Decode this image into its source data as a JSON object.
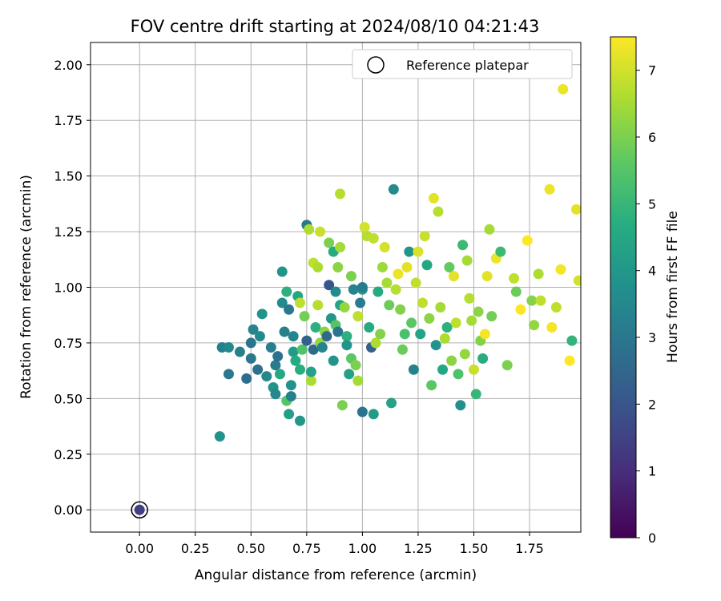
{
  "chart_data": {
    "type": "scatter",
    "title": "FOV centre drift starting at 2024/08/10 04:21:43",
    "xlabel": "Angular distance from reference (arcmin)",
    "ylabel": "Rotation from reference (arcmin)",
    "xlim": [
      -0.22,
      1.98
    ],
    "ylim": [
      -0.1,
      2.1
    ],
    "xticks": [
      "0.00",
      "0.25",
      "0.50",
      "0.75",
      "1.00",
      "1.25",
      "1.50",
      "1.75"
    ],
    "yticks": [
      "0.00",
      "0.25",
      "0.50",
      "0.75",
      "1.00",
      "1.25",
      "1.50",
      "1.75",
      "2.00"
    ],
    "grid": true,
    "legend": {
      "position": "top-right",
      "entries": [
        "Reference platepar"
      ]
    },
    "colorbar": {
      "label": "Hours from first FF file",
      "colormap": "viridis",
      "range": [
        0,
        7.5
      ],
      "ticks": [
        "0",
        "1",
        "2",
        "3",
        "4",
        "5",
        "6",
        "7"
      ]
    },
    "reference_point": {
      "x": 0.0,
      "y": 0.0,
      "value": 1.4
    },
    "series": [
      {
        "points": [
          [
            0.36,
            0.33,
            3.8
          ],
          [
            0.37,
            0.73,
            3.2
          ],
          [
            0.4,
            0.73,
            3.5
          ],
          [
            0.4,
            0.61,
            3.0
          ],
          [
            0.45,
            0.71,
            3.3
          ],
          [
            0.48,
            0.59,
            2.7
          ],
          [
            0.5,
            0.68,
            3.0
          ],
          [
            0.5,
            0.75,
            2.9
          ],
          [
            0.51,
            0.81,
            3.4
          ],
          [
            0.53,
            0.63,
            2.8
          ],
          [
            0.54,
            0.78,
            3.6
          ],
          [
            0.55,
            0.88,
            3.8
          ],
          [
            0.57,
            0.6,
            3.5
          ],
          [
            0.59,
            0.73,
            3.2
          ],
          [
            0.6,
            0.55,
            3.9
          ],
          [
            0.61,
            0.65,
            3.1
          ],
          [
            0.61,
            0.52,
            3.5
          ],
          [
            0.62,
            0.69,
            2.8
          ],
          [
            0.63,
            0.61,
            4.5
          ],
          [
            0.64,
            0.93,
            3.6
          ],
          [
            0.64,
            1.07,
            3.9
          ],
          [
            0.65,
            0.8,
            3.3
          ],
          [
            0.66,
            0.98,
            4.8
          ],
          [
            0.66,
            0.49,
            5.5
          ],
          [
            0.67,
            0.43,
            4.2
          ],
          [
            0.67,
            0.9,
            3.0
          ],
          [
            0.68,
            0.51,
            3.3
          ],
          [
            0.68,
            0.56,
            3.8
          ],
          [
            0.69,
            0.71,
            4.1
          ],
          [
            0.69,
            0.78,
            3.4
          ],
          [
            0.7,
            0.67,
            4.6
          ],
          [
            0.71,
            0.96,
            4.5
          ],
          [
            0.72,
            0.93,
            6.8
          ],
          [
            0.72,
            0.4,
            4.0
          ],
          [
            0.72,
            0.63,
            4.7
          ],
          [
            0.73,
            0.72,
            5.4
          ],
          [
            0.74,
            0.87,
            5.9
          ],
          [
            0.75,
            0.76,
            2.3
          ],
          [
            0.75,
            1.28,
            3.0
          ],
          [
            0.76,
            1.26,
            6.6
          ],
          [
            0.77,
            0.58,
            6.6
          ],
          [
            0.77,
            0.62,
            4.3
          ],
          [
            0.78,
            1.11,
            6.8
          ],
          [
            0.78,
            0.72,
            2.6
          ],
          [
            0.79,
            0.82,
            4.8
          ],
          [
            0.8,
            1.09,
            6.6
          ],
          [
            0.8,
            0.92,
            6.7
          ],
          [
            0.81,
            0.75,
            6.3
          ],
          [
            0.81,
            1.25,
            6.9
          ],
          [
            0.82,
            0.73,
            3.4
          ],
          [
            0.83,
            0.8,
            6.2
          ],
          [
            0.84,
            0.78,
            2.6
          ],
          [
            0.85,
            1.2,
            6.0
          ],
          [
            0.85,
            1.01,
            2.0
          ],
          [
            0.86,
            0.86,
            4.0
          ],
          [
            0.87,
            0.67,
            3.9
          ],
          [
            0.87,
            1.16,
            4.6
          ],
          [
            0.88,
            0.98,
            3.6
          ],
          [
            0.88,
            0.83,
            5.5
          ],
          [
            0.89,
            1.09,
            6.2
          ],
          [
            0.89,
            0.8,
            2.9
          ],
          [
            0.9,
            1.42,
            6.7
          ],
          [
            0.9,
            0.92,
            4.4
          ],
          [
            0.9,
            1.18,
            6.5
          ],
          [
            0.91,
            0.47,
            6.0
          ],
          [
            0.92,
            0.91,
            6.3
          ],
          [
            0.93,
            0.78,
            4.8
          ],
          [
            0.93,
            0.74,
            3.9
          ],
          [
            0.94,
            0.61,
            4.3
          ],
          [
            0.95,
            0.68,
            5.6
          ],
          [
            0.95,
            1.05,
            6.0
          ],
          [
            0.96,
            0.99,
            3.4
          ],
          [
            0.97,
            0.65,
            6.0
          ],
          [
            0.98,
            0.58,
            6.5
          ],
          [
            0.98,
            0.87,
            6.8
          ],
          [
            0.99,
            0.93,
            3.2
          ],
          [
            1.0,
            0.44,
            2.9
          ],
          [
            1.0,
            0.99,
            4.0
          ],
          [
            1.0,
            1.0,
            3.1
          ],
          [
            1.01,
            1.27,
            7.0
          ],
          [
            1.02,
            1.23,
            6.7
          ],
          [
            1.03,
            0.82,
            4.6
          ],
          [
            1.04,
            0.73,
            2.3
          ],
          [
            1.05,
            1.22,
            6.8
          ],
          [
            1.05,
            0.43,
            4.1
          ],
          [
            1.06,
            0.75,
            6.6
          ],
          [
            1.07,
            0.98,
            4.6
          ],
          [
            1.08,
            0.79,
            6.1
          ],
          [
            1.09,
            1.09,
            6.4
          ],
          [
            1.1,
            1.18,
            7.0
          ],
          [
            1.11,
            1.02,
            6.5
          ],
          [
            1.12,
            0.92,
            5.8
          ],
          [
            1.13,
            0.48,
            4.3
          ],
          [
            1.14,
            1.44,
            3.6
          ],
          [
            1.15,
            0.99,
            6.7
          ],
          [
            1.16,
            1.06,
            7.3
          ],
          [
            1.17,
            0.9,
            6.1
          ],
          [
            1.18,
            0.72,
            5.8
          ],
          [
            1.19,
            0.79,
            5.3
          ],
          [
            1.2,
            1.09,
            7.2
          ],
          [
            1.21,
            1.16,
            3.9
          ],
          [
            1.22,
            0.84,
            5.6
          ],
          [
            1.23,
            0.63,
            3.3
          ],
          [
            1.24,
            1.02,
            6.8
          ],
          [
            1.25,
            1.16,
            7.1
          ],
          [
            1.26,
            0.79,
            4.4
          ],
          [
            1.27,
            0.93,
            6.8
          ],
          [
            1.28,
            1.23,
            6.9
          ],
          [
            1.29,
            1.1,
            4.5
          ],
          [
            1.3,
            0.86,
            6.2
          ],
          [
            1.31,
            0.56,
            5.6
          ],
          [
            1.32,
            1.4,
            7.2
          ],
          [
            1.33,
            0.74,
            3.8
          ],
          [
            1.34,
            1.34,
            6.7
          ],
          [
            1.35,
            0.91,
            6.5
          ],
          [
            1.36,
            0.63,
            4.5
          ],
          [
            1.37,
            0.77,
            6.6
          ],
          [
            1.38,
            0.82,
            4.8
          ],
          [
            1.39,
            1.09,
            5.7
          ],
          [
            1.4,
            0.67,
            6.2
          ],
          [
            1.41,
            1.05,
            7.2
          ],
          [
            1.42,
            0.84,
            6.8
          ],
          [
            1.43,
            0.61,
            5.4
          ],
          [
            1.44,
            0.47,
            3.7
          ],
          [
            1.45,
            1.19,
            5.1
          ],
          [
            1.46,
            0.7,
            6.3
          ],
          [
            1.47,
            1.12,
            6.5
          ],
          [
            1.48,
            0.95,
            6.7
          ],
          [
            1.49,
            0.85,
            6.5
          ],
          [
            1.5,
            0.63,
            6.9
          ],
          [
            1.51,
            0.52,
            5.0
          ],
          [
            1.52,
            0.89,
            6.2
          ],
          [
            1.53,
            0.76,
            6.1
          ],
          [
            1.54,
            0.68,
            4.7
          ],
          [
            1.55,
            0.79,
            7.4
          ],
          [
            1.56,
            1.05,
            7.2
          ],
          [
            1.57,
            1.26,
            6.5
          ],
          [
            1.58,
            0.87,
            5.9
          ],
          [
            1.6,
            1.13,
            7.3
          ],
          [
            1.62,
            1.16,
            5.1
          ],
          [
            1.65,
            0.65,
            6.0
          ],
          [
            1.68,
            1.04,
            6.8
          ],
          [
            1.69,
            0.98,
            5.8
          ],
          [
            1.71,
            0.9,
            7.5
          ],
          [
            1.74,
            1.21,
            7.5
          ],
          [
            1.76,
            0.94,
            6.1
          ],
          [
            1.77,
            0.83,
            6.3
          ],
          [
            1.79,
            1.06,
            6.6
          ],
          [
            1.8,
            0.94,
            6.8
          ],
          [
            1.84,
            1.44,
            7.3
          ],
          [
            1.85,
            0.82,
            7.4
          ],
          [
            1.87,
            0.91,
            6.8
          ],
          [
            1.89,
            1.08,
            7.4
          ],
          [
            1.9,
            1.89,
            7.3
          ],
          [
            1.93,
            0.67,
            7.5
          ],
          [
            1.94,
            0.76,
            4.9
          ],
          [
            1.96,
            1.35,
            7.2
          ],
          [
            1.97,
            1.03,
            7.0
          ]
        ]
      }
    ]
  }
}
